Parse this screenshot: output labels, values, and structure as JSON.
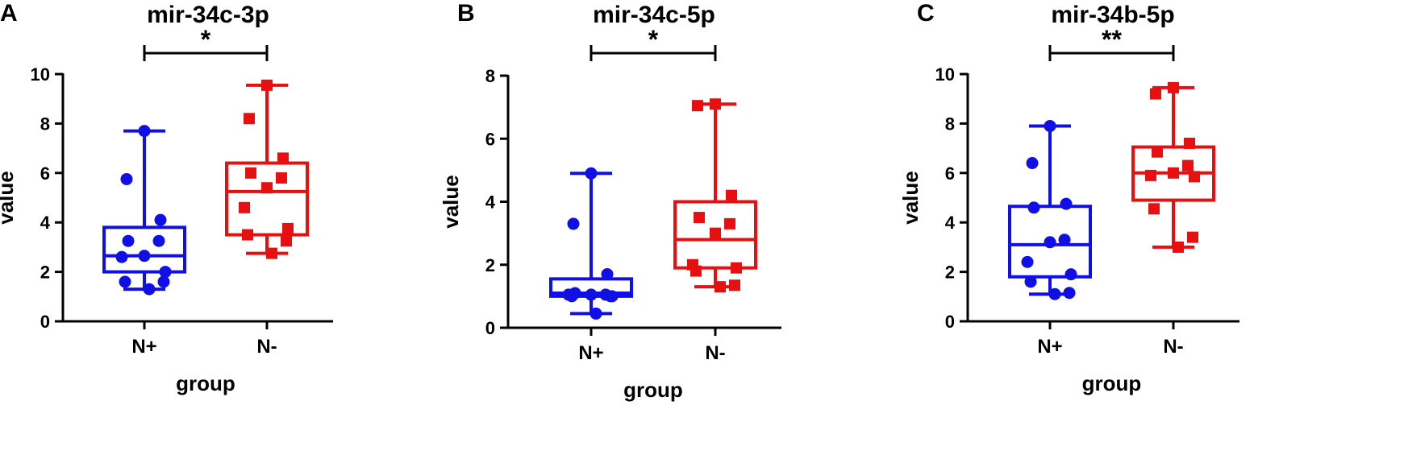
{
  "chart_data": [
    {
      "type": "box",
      "panel_label": "A",
      "title": "mir-34c-3p",
      "significance": "*",
      "xlabel": "group",
      "ylabel": "value",
      "categories": [
        "N+",
        "N-"
      ],
      "ylim": [
        0,
        10
      ],
      "yticks": [
        0,
        2,
        4,
        6,
        8,
        10
      ],
      "grid": false,
      "series": [
        {
          "category": "N+",
          "color": "#1010E6",
          "marker": "circle",
          "min": 1.3,
          "q1": 2.0,
          "median": 2.65,
          "q3": 3.8,
          "max": 7.7,
          "points": [
            7.7,
            5.75,
            4.1,
            3.25,
            3.25,
            2.65,
            2.6,
            2.0,
            1.6,
            1.6,
            1.3
          ]
        },
        {
          "category": "N-",
          "color": "#E61010",
          "marker": "square",
          "min": 2.75,
          "q1": 3.5,
          "median": 5.25,
          "q3": 6.4,
          "max": 9.55,
          "points": [
            9.55,
            8.2,
            6.6,
            6.0,
            5.8,
            5.4,
            4.6,
            3.75,
            3.5,
            3.25,
            2.75
          ]
        }
      ]
    },
    {
      "type": "box",
      "panel_label": "B",
      "title": "mir-34c-5p",
      "significance": "*",
      "xlabel": "group",
      "ylabel": "value",
      "categories": [
        "N+",
        "N-"
      ],
      "ylim": [
        0,
        8
      ],
      "yticks": [
        0,
        2,
        4,
        6,
        8
      ],
      "grid": false,
      "series": [
        {
          "category": "N+",
          "color": "#1010E6",
          "marker": "circle",
          "min": 0.45,
          "q1": 1.0,
          "median": 1.1,
          "q3": 1.55,
          "max": 4.9,
          "points": [
            4.9,
            3.3,
            1.7,
            1.1,
            1.05,
            1.05,
            1.05,
            1.0,
            1.0,
            1.0,
            0.45
          ]
        },
        {
          "category": "N-",
          "color": "#E61010",
          "marker": "square",
          "min": 1.3,
          "q1": 1.9,
          "median": 2.8,
          "q3": 4.0,
          "max": 7.1,
          "points": [
            7.1,
            7.05,
            4.2,
            3.5,
            3.3,
            3.0,
            2.0,
            1.9,
            1.8,
            1.35,
            1.3
          ]
        }
      ]
    },
    {
      "type": "box",
      "panel_label": "C",
      "title": "mir-34b-5p",
      "significance": "**",
      "xlabel": "group",
      "ylabel": "value",
      "categories": [
        "N+",
        "N-"
      ],
      "ylim": [
        0,
        10
      ],
      "yticks": [
        0,
        2,
        4,
        6,
        8,
        10
      ],
      "grid": false,
      "series": [
        {
          "category": "N+",
          "color": "#1010E6",
          "marker": "circle",
          "min": 1.1,
          "q1": 1.8,
          "median": 3.1,
          "q3": 4.65,
          "max": 7.9,
          "points": [
            7.9,
            6.4,
            4.75,
            4.6,
            3.3,
            3.2,
            2.4,
            1.9,
            1.6,
            1.15,
            1.1
          ]
        },
        {
          "category": "N-",
          "color": "#E61010",
          "marker": "square",
          "min": 3.0,
          "q1": 4.9,
          "median": 6.0,
          "q3": 7.05,
          "max": 9.45,
          "points": [
            9.45,
            9.2,
            7.2,
            6.85,
            6.3,
            6.0,
            5.9,
            5.85,
            4.55,
            3.4,
            3.0
          ]
        }
      ]
    }
  ]
}
